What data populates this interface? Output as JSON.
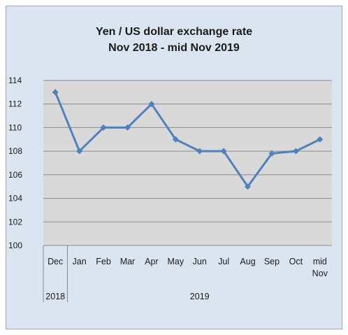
{
  "chart_data": {
    "type": "line",
    "title": "Yen / US dollar exchange rate",
    "subtitle": "Nov 2018 - mid Nov 2019",
    "categories": [
      [
        "Dec"
      ],
      [
        "Jan"
      ],
      [
        "Feb"
      ],
      [
        "Mar"
      ],
      [
        "Apr"
      ],
      [
        "May"
      ],
      [
        "Jun"
      ],
      [
        "Jul"
      ],
      [
        "Aug"
      ],
      [
        "Sep"
      ],
      [
        "Oct"
      ],
      [
        "mid",
        "Nov"
      ]
    ],
    "category_groups": [
      {
        "label": "2018",
        "span": 1
      },
      {
        "label": "2019",
        "span": 11
      }
    ],
    "series": [
      {
        "values": [
          113,
          108,
          110,
          110,
          112,
          109,
          108,
          108,
          105,
          107.8,
          108,
          109
        ],
        "color": "#4f81bd"
      }
    ],
    "ylim": [
      100,
      114
    ],
    "yticks": [
      100,
      102,
      104,
      106,
      108,
      110,
      112,
      114
    ],
    "grid": true,
    "plot_background": "#d9d9d9",
    "chart_background": "#dbe5f1"
  }
}
